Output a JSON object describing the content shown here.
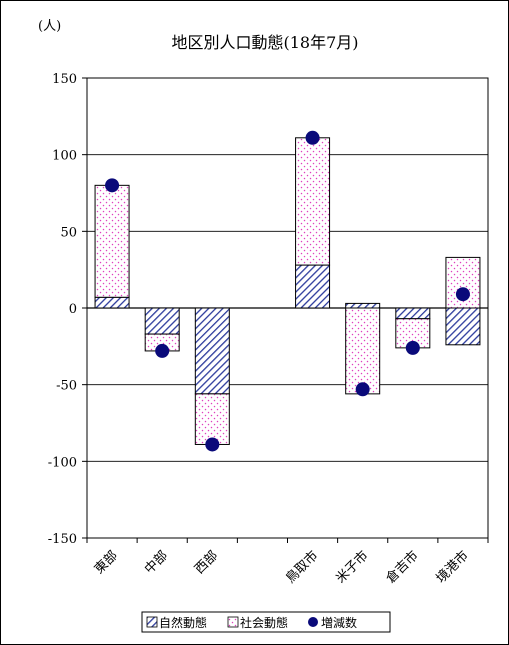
{
  "chart_data": {
    "type": "bar",
    "title": "地区別人口動態(18年7月)",
    "unit_label": "(人)",
    "ylim": [
      -150,
      150
    ],
    "yticks": [
      150,
      100,
      50,
      0,
      -50,
      -100,
      -150
    ],
    "categories": [
      "東部",
      "中部",
      "西部",
      "",
      "鳥取市",
      "米子市",
      "倉吉市",
      "境港市"
    ],
    "series": [
      {
        "name": "自然動態",
        "type": "stacked-bar",
        "values": [
          7,
          -17,
          -56,
          null,
          28,
          3,
          -7,
          -24
        ]
      },
      {
        "name": "社会動態",
        "type": "stacked-bar",
        "values": [
          73,
          -11,
          -33,
          null,
          83,
          -56,
          -19,
          33
        ]
      },
      {
        "name": "増減数",
        "type": "scatter",
        "values": [
          80,
          -28,
          -89,
          null,
          111,
          -53,
          -26,
          9
        ]
      }
    ],
    "grid": true,
    "legend_position": "bottom"
  }
}
